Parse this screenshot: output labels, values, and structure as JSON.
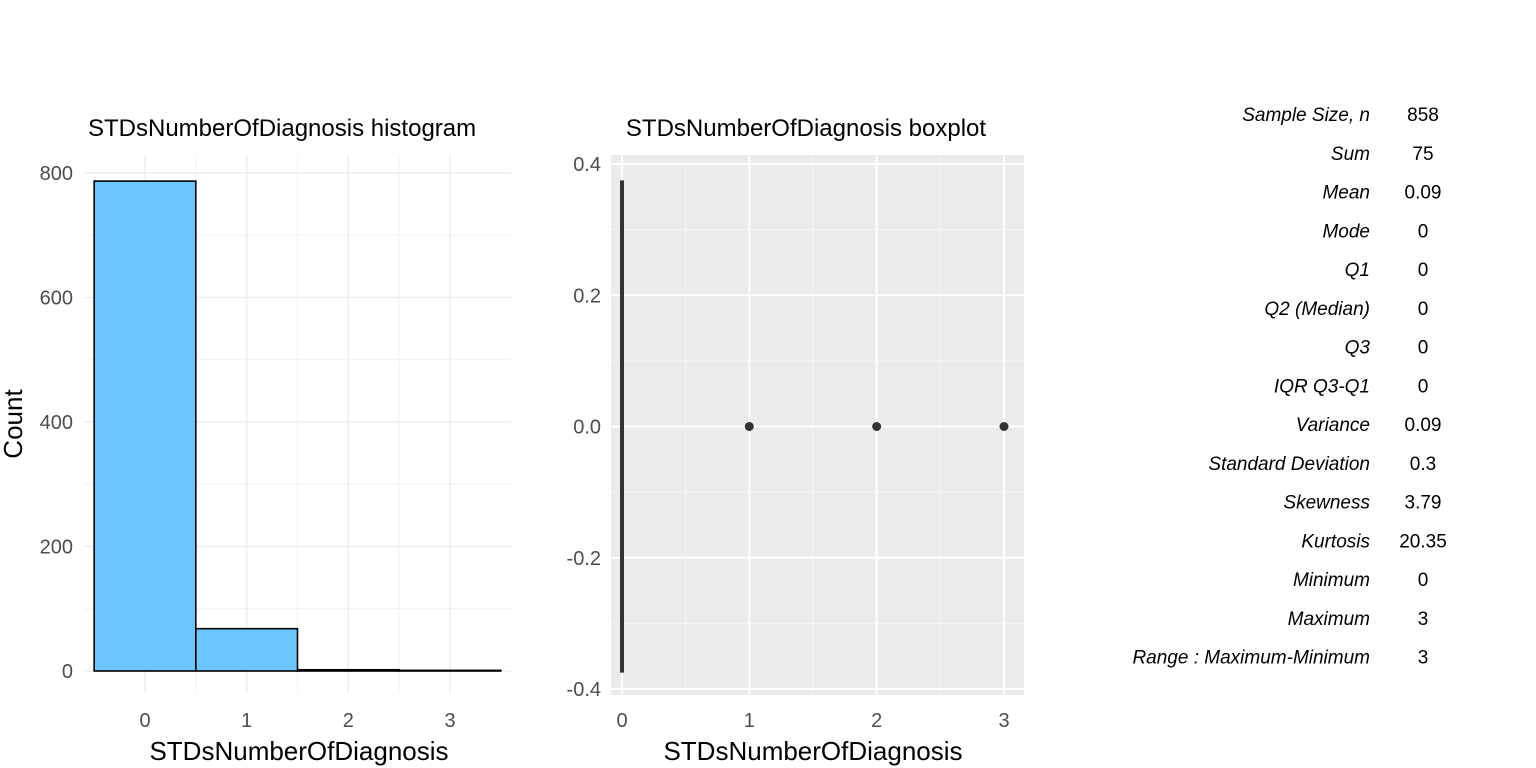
{
  "chart_data": [
    {
      "type": "bar",
      "title": "STDsNumberOfDiagnosis histogram",
      "xlabel": "STDsNumberOfDiagnosis",
      "ylabel": "Count",
      "categories": [
        0,
        1,
        2,
        3
      ],
      "values": [
        787,
        68,
        2,
        1
      ],
      "bar_color": "#6bc6ff",
      "xlim": [
        -0.6,
        3.6
      ],
      "ylim": [
        0,
        800
      ],
      "x_ticks": [
        0,
        1,
        2,
        3
      ],
      "y_ticks": [
        0,
        200,
        400,
        600,
        800
      ],
      "grid": true
    },
    {
      "type": "scatter",
      "title": "STDsNumberOfDiagnosis boxplot",
      "xlabel": "STDsNumberOfDiagnosis",
      "ylabel": "",
      "box": {
        "x": 0,
        "ymin": -0.375,
        "ymax": 0.375
      },
      "outliers": [
        {
          "x": 1,
          "y": 0
        },
        {
          "x": 2,
          "y": 0
        },
        {
          "x": 3,
          "y": 0
        }
      ],
      "xlim": [
        -0.15,
        3.15
      ],
      "ylim": [
        -0.4,
        0.4
      ],
      "x_ticks": [
        0,
        1,
        2,
        3
      ],
      "y_ticks": [
        0.4,
        0.2,
        0.0,
        -0.2,
        -0.4
      ],
      "y_tick_labels": [
        "0.4",
        "0.2",
        "0.0",
        "-0.2",
        "-0.4"
      ],
      "grid": true,
      "panel_background": "#ebebeb"
    }
  ],
  "stats_table": [
    {
      "label": "Sample Size, n",
      "value": "858"
    },
    {
      "label": "Sum",
      "value": "75"
    },
    {
      "label": "Mean",
      "value": "0.09"
    },
    {
      "label": "Mode",
      "value": "0"
    },
    {
      "label": "Q1",
      "value": "0"
    },
    {
      "label": "Q2 (Median)",
      "value": "0"
    },
    {
      "label": "Q3",
      "value": "0"
    },
    {
      "label": "IQR Q3-Q1",
      "value": "0"
    },
    {
      "label": "Variance",
      "value": "0.09"
    },
    {
      "label": "Standard Deviation",
      "value": "0.3"
    },
    {
      "label": "Skewness",
      "value": "3.79"
    },
    {
      "label": "Kurtosis",
      "value": "20.35"
    },
    {
      "label": "Minimum",
      "value": "0"
    },
    {
      "label": "Maximum",
      "value": "3"
    },
    {
      "label": "Range : Maximum-Minimum",
      "value": "3"
    }
  ]
}
